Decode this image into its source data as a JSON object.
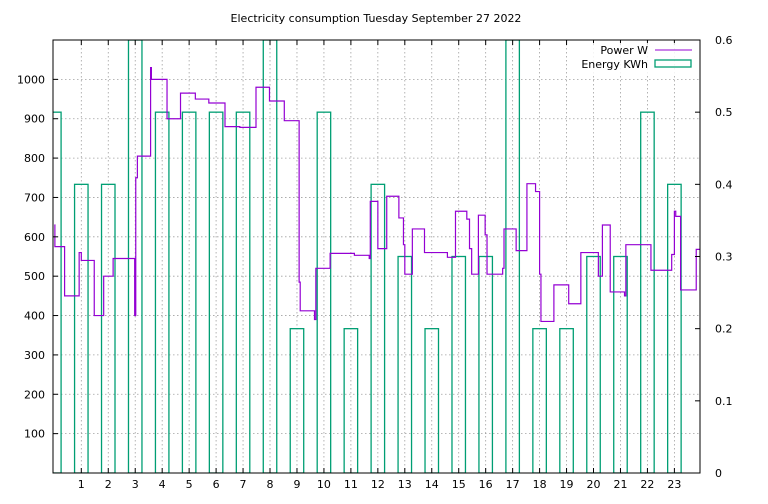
{
  "chart_data": {
    "type": "line",
    "title": "Electricity consumption Tuesday September 27 2022",
    "xlabel": "",
    "ylabel": "",
    "xlim": [
      -0.05,
      23.95
    ],
    "ylim": [
      0,
      1100
    ],
    "y2lim": [
      0,
      0.6
    ],
    "grid": true,
    "legend_position": "top-right",
    "x_ticks": [
      1,
      2,
      3,
      4,
      5,
      6,
      7,
      8,
      9,
      10,
      11,
      12,
      13,
      14,
      15,
      16,
      17,
      18,
      19,
      20,
      21,
      22,
      23
    ],
    "y_ticks": [
      100,
      200,
      300,
      400,
      500,
      600,
      700,
      800,
      900,
      1000
    ],
    "y2_ticks": [
      0,
      0.1,
      0.2,
      0.3,
      0.4,
      0.5,
      0.6
    ],
    "series": [
      {
        "name": "Power W",
        "color": "#9400d3",
        "axis": "y1",
        "style": "step",
        "points": [
          [
            0.0,
            630
          ],
          [
            0.02,
            575
          ],
          [
            0.3,
            575
          ],
          [
            0.38,
            450
          ],
          [
            0.9,
            450
          ],
          [
            0.92,
            560
          ],
          [
            1.0,
            540
          ],
          [
            1.45,
            540
          ],
          [
            1.48,
            400
          ],
          [
            1.8,
            400
          ],
          [
            1.83,
            500
          ],
          [
            2.15,
            500
          ],
          [
            2.18,
            545
          ],
          [
            2.95,
            545
          ],
          [
            2.98,
            400
          ],
          [
            3.02,
            750
          ],
          [
            3.08,
            805
          ],
          [
            3.55,
            805
          ],
          [
            3.57,
            1030
          ],
          [
            3.6,
            1000
          ],
          [
            4.15,
            1000
          ],
          [
            4.18,
            900
          ],
          [
            4.65,
            900
          ],
          [
            4.68,
            965
          ],
          [
            5.2,
            965
          ],
          [
            5.23,
            950
          ],
          [
            5.7,
            950
          ],
          [
            5.73,
            940
          ],
          [
            6.3,
            940
          ],
          [
            6.33,
            880
          ],
          [
            6.85,
            880
          ],
          [
            6.88,
            878
          ],
          [
            7.45,
            878
          ],
          [
            7.48,
            980
          ],
          [
            7.95,
            980
          ],
          [
            7.98,
            945
          ],
          [
            8.5,
            945
          ],
          [
            8.53,
            895
          ],
          [
            9.05,
            895
          ],
          [
            9.08,
            485
          ],
          [
            9.12,
            412
          ],
          [
            9.62,
            412
          ],
          [
            9.65,
            390
          ],
          [
            9.7,
            520
          ],
          [
            10.2,
            520
          ],
          [
            10.23,
            558
          ],
          [
            11.1,
            558
          ],
          [
            11.13,
            553
          ],
          [
            11.65,
            553
          ],
          [
            11.68,
            545
          ],
          [
            11.72,
            690
          ],
          [
            11.98,
            690
          ],
          [
            12.0,
            570
          ],
          [
            12.3,
            570
          ],
          [
            12.33,
            703
          ],
          [
            12.75,
            703
          ],
          [
            12.78,
            648
          ],
          [
            12.9,
            648
          ],
          [
            12.95,
            580
          ],
          [
            13.0,
            505
          ],
          [
            13.25,
            505
          ],
          [
            13.28,
            620
          ],
          [
            13.7,
            620
          ],
          [
            13.73,
            560
          ],
          [
            14.55,
            560
          ],
          [
            14.58,
            548
          ],
          [
            14.85,
            548
          ],
          [
            14.88,
            665
          ],
          [
            15.25,
            665
          ],
          [
            15.3,
            645
          ],
          [
            15.4,
            570
          ],
          [
            15.48,
            505
          ],
          [
            15.7,
            505
          ],
          [
            15.73,
            655
          ],
          [
            15.95,
            655
          ],
          [
            15.98,
            605
          ],
          [
            16.05,
            505
          ],
          [
            16.6,
            505
          ],
          [
            16.63,
            520
          ],
          [
            16.68,
            620
          ],
          [
            17.1,
            620
          ],
          [
            17.13,
            565
          ],
          [
            17.5,
            565
          ],
          [
            17.53,
            735
          ],
          [
            17.82,
            735
          ],
          [
            17.85,
            715
          ],
          [
            17.98,
            715
          ],
          [
            18.0,
            505
          ],
          [
            18.05,
            385
          ],
          [
            18.5,
            385
          ],
          [
            18.53,
            478
          ],
          [
            19.05,
            478
          ],
          [
            19.08,
            430
          ],
          [
            19.5,
            430
          ],
          [
            19.53,
            560
          ],
          [
            20.15,
            560
          ],
          [
            20.18,
            500
          ],
          [
            20.3,
            500
          ],
          [
            20.33,
            630
          ],
          [
            20.58,
            630
          ],
          [
            20.62,
            460
          ],
          [
            21.12,
            460
          ],
          [
            21.15,
            450
          ],
          [
            21.2,
            580
          ],
          [
            22.1,
            580
          ],
          [
            22.13,
            515
          ],
          [
            22.88,
            515
          ],
          [
            22.9,
            555
          ],
          [
            23.0,
            665
          ],
          [
            23.05,
            652
          ],
          [
            23.2,
            652
          ],
          [
            23.23,
            465
          ],
          [
            23.78,
            465
          ],
          [
            23.81,
            568
          ],
          [
            23.95,
            568
          ]
        ]
      },
      {
        "name": "Energy KWh",
        "color": "#009e73",
        "axis": "y2",
        "style": "bars",
        "bar_width": 0.5,
        "x": [
          0,
          1,
          2,
          3,
          4,
          5,
          6,
          7,
          8,
          9,
          10,
          11,
          12,
          13,
          14,
          15,
          16,
          17,
          18,
          19,
          20,
          21,
          22,
          23
        ],
        "values": [
          0.5,
          0.4,
          0.4,
          0.6,
          0.5,
          0.5,
          0.5,
          0.5,
          0.6,
          0.2,
          0.5,
          0.2,
          0.4,
          0.3,
          0.2,
          0.3,
          0.3,
          0.6,
          0.2,
          0.2,
          0.3,
          0.3,
          0.5,
          0.4
        ]
      }
    ]
  }
}
